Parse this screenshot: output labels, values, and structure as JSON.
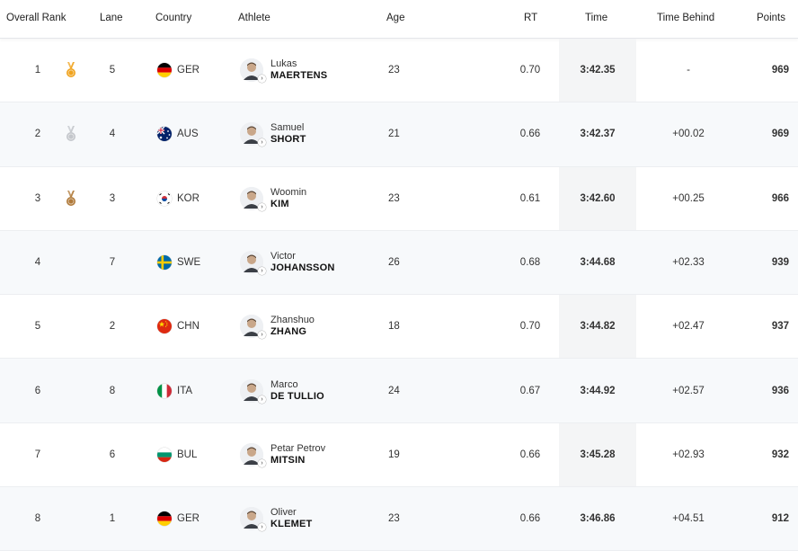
{
  "columns": {
    "rank": "Overall Rank",
    "lane": "Lane",
    "country": "Country",
    "athlete": "Athlete",
    "age": "Age",
    "rt": "RT",
    "time": "Time",
    "behind": "Time Behind",
    "points": "Points"
  },
  "rows": [
    {
      "rank": "1",
      "medal": "gold-medal-icon",
      "lane": "5",
      "noc": "GER",
      "flag": "germany-flag-icon",
      "first": "Lukas",
      "last": "MAERTENS",
      "age": "23",
      "rt": "0.70",
      "time": "3:42.35",
      "behind": "-",
      "points": "969"
    },
    {
      "rank": "2",
      "medal": "silver-medal-icon",
      "lane": "4",
      "noc": "AUS",
      "flag": "australia-flag-icon",
      "first": "Samuel",
      "last": "SHORT",
      "age": "21",
      "rt": "0.66",
      "time": "3:42.37",
      "behind": "+00.02",
      "points": "969"
    },
    {
      "rank": "3",
      "medal": "bronze-medal-icon",
      "lane": "3",
      "noc": "KOR",
      "flag": "korea-flag-icon",
      "first": "Woomin",
      "last": "KIM",
      "age": "23",
      "rt": "0.61",
      "time": "3:42.60",
      "behind": "+00.25",
      "points": "966"
    },
    {
      "rank": "4",
      "medal": "",
      "lane": "7",
      "noc": "SWE",
      "flag": "sweden-flag-icon",
      "first": "Victor",
      "last": "JOHANSSON",
      "age": "26",
      "rt": "0.68",
      "time": "3:44.68",
      "behind": "+02.33",
      "points": "939"
    },
    {
      "rank": "5",
      "medal": "",
      "lane": "2",
      "noc": "CHN",
      "flag": "china-flag-icon",
      "first": "Zhanshuo",
      "last": "ZHANG",
      "age": "18",
      "rt": "0.70",
      "time": "3:44.82",
      "behind": "+02.47",
      "points": "937"
    },
    {
      "rank": "6",
      "medal": "",
      "lane": "8",
      "noc": "ITA",
      "flag": "italy-flag-icon",
      "first": "Marco",
      "last": "DE TULLIO",
      "age": "24",
      "rt": "0.67",
      "time": "3:44.92",
      "behind": "+02.57",
      "points": "936"
    },
    {
      "rank": "7",
      "medal": "",
      "lane": "6",
      "noc": "BUL",
      "flag": "bulgaria-flag-icon",
      "first": "Petar Petrov",
      "last": "MITSIN",
      "age": "19",
      "rt": "0.66",
      "time": "3:45.28",
      "behind": "+02.93",
      "points": "932"
    },
    {
      "rank": "8",
      "medal": "",
      "lane": "1",
      "noc": "GER",
      "flag": "germany-flag-icon",
      "first": "Oliver",
      "last": "KLEMET",
      "age": "23",
      "rt": "0.66",
      "time": "3:46.86",
      "behind": "+04.51",
      "points": "912"
    }
  ],
  "colors": {
    "gold": "#f0a31e",
    "silver": "#c3c6cb",
    "bronze": "#b07a3a",
    "time_column_bg": "#f4f5f6",
    "alt_row_bg": "#f7f9fb"
  }
}
